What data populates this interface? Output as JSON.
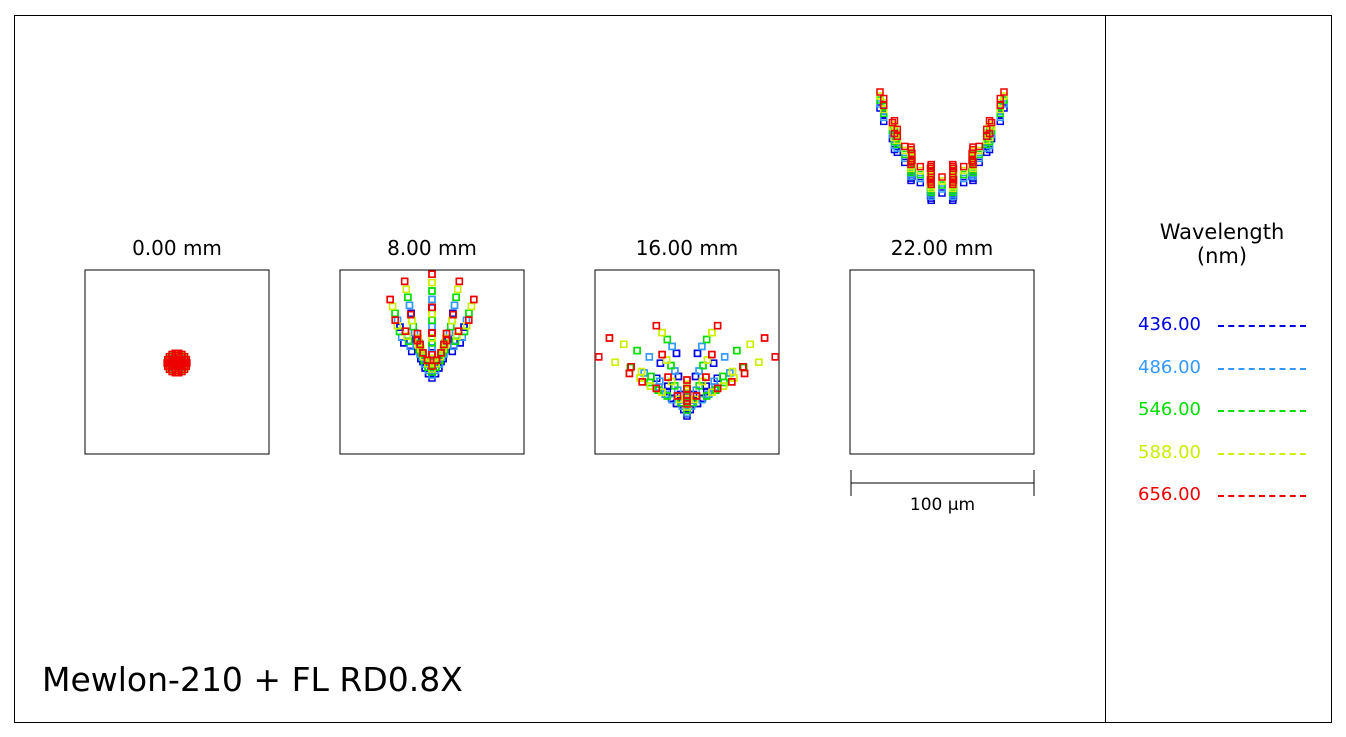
{
  "chart_data": {
    "type": "scatter",
    "subtype": "spot-diagram",
    "title": "Mewlon-210 + FL RD0.8X",
    "fields": [
      {
        "label": "0.00 mm"
      },
      {
        "label": "8.00 mm"
      },
      {
        "label": "16.00 mm"
      },
      {
        "label": "22.00 mm"
      }
    ],
    "scale_bar": {
      "label": "100 µm",
      "value_um": 100
    },
    "legend": {
      "title_line1": "Wavelength",
      "title_line2": "(nm)",
      "placement": "right",
      "items": [
        {
          "label": "436.00",
          "color": "#0000e0"
        },
        {
          "label": "486.00",
          "color": "#3399ff"
        },
        {
          "label": "546.00",
          "color": "#00dd00"
        },
        {
          "label": "588.00",
          "color": "#ccee00"
        },
        {
          "label": "656.00",
          "color": "#ee0000"
        }
      ]
    },
    "marker": "open-square"
  }
}
